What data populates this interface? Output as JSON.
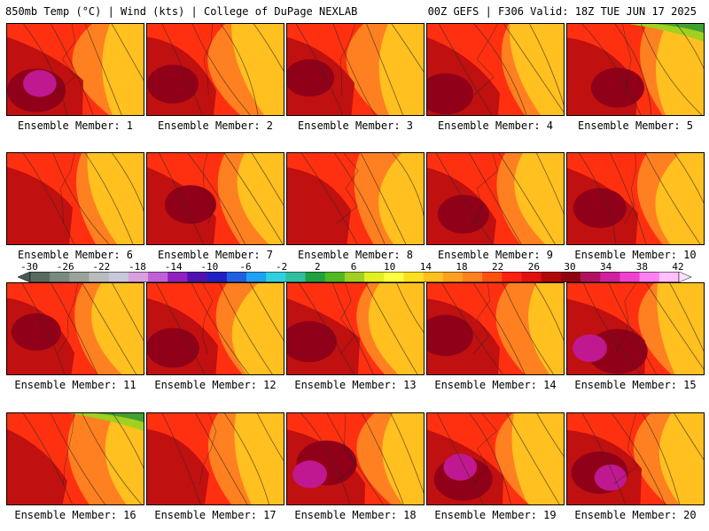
{
  "header": {
    "left": "850mb Temp (°C) | Wind (kts) | College of DuPage NEXLAB",
    "right": "00Z GEFS | F306 Valid: 18Z TUE JUN 17 2025"
  },
  "members": [
    "Ensemble Member: 1",
    "Ensemble Member: 2",
    "Ensemble Member: 3",
    "Ensemble Member: 4",
    "Ensemble Member: 5",
    "Ensemble Member: 6",
    "Ensemble Member: 7",
    "Ensemble Member: 8",
    "Ensemble Member: 9",
    "Ensemble Member: 10",
    "Ensemble Member: 11",
    "Ensemble Member: 12",
    "Ensemble Member: 13",
    "Ensemble Member: 14",
    "Ensemble Member: 15",
    "Ensemble Member: 16",
    "Ensemble Member: 17",
    "Ensemble Member: 18",
    "Ensemble Member: 19",
    "Ensemble Member: 20"
  ],
  "colorbar": {
    "labels": [
      "-30",
      "-26",
      "-22",
      "-18",
      "-14",
      "-10",
      "-6",
      "-2",
      "2",
      "6",
      "10",
      "14",
      "18",
      "22",
      "26",
      "30",
      "34",
      "38",
      "42"
    ],
    "colors": [
      "#5a6a60",
      "#7a8a80",
      "#9aa49c",
      "#b8bcbc",
      "#c8c8dc",
      "#d8a0e0",
      "#c060d8",
      "#9020c0",
      "#5010b0",
      "#2020c0",
      "#2060e0",
      "#20a0f0",
      "#30d0e0",
      "#30c0a0",
      "#20a040",
      "#50b820",
      "#a0d020",
      "#e0f020",
      "#ffff40",
      "#ffe020",
      "#ffc020",
      "#ffa020",
      "#ff8020",
      "#ff5010",
      "#ff2010",
      "#e01010",
      "#b00808",
      "#900010",
      "#b01060",
      "#d020a0",
      "#f040d0",
      "#ff80f0",
      "#ffc0ff"
    ],
    "low_end_color": "#4a5a50",
    "high_end_color": "#ffe0ff"
  }
}
